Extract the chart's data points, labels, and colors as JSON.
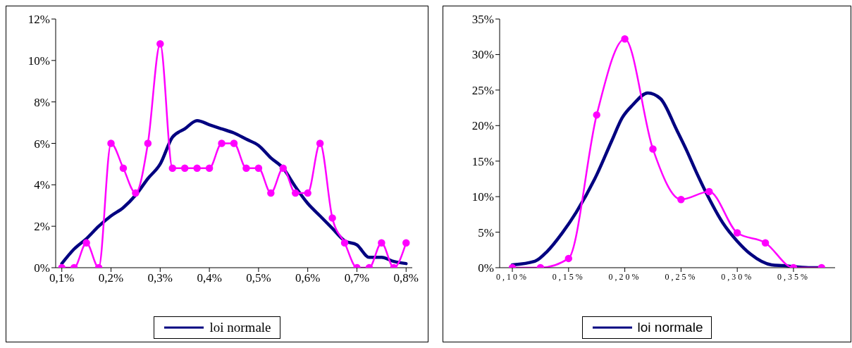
{
  "chart_data": [
    {
      "type": "line",
      "legend": "bottom",
      "xlim": [
        0.0875,
        0.8125
      ],
      "ylim": [
        0,
        12
      ],
      "xticks": [
        {
          "value": 0.1,
          "label": "0,1%"
        },
        {
          "value": 0.2,
          "label": "0,2%"
        },
        {
          "value": 0.3,
          "label": "0,3%"
        },
        {
          "value": 0.4,
          "label": "0,4%"
        },
        {
          "value": 0.5,
          "label": "0,5%"
        },
        {
          "value": 0.6,
          "label": "0,6%"
        },
        {
          "value": 0.7,
          "label": "0,7%"
        },
        {
          "value": 0.8,
          "label": "0,8%"
        }
      ],
      "yticks": [
        {
          "value": 0,
          "label": "0%"
        },
        {
          "value": 2,
          "label": "2%"
        },
        {
          "value": 4,
          "label": "4%"
        },
        {
          "value": 6,
          "label": "6%"
        },
        {
          "value": 8,
          "label": "8%"
        },
        {
          "value": 10,
          "label": "10%"
        },
        {
          "value": 12,
          "label": "12%"
        }
      ],
      "series": [
        {
          "name": "loi normale",
          "color": "#000080",
          "marker": "none",
          "x": [
            0.1,
            0.125,
            0.15,
            0.175,
            0.2,
            0.225,
            0.25,
            0.275,
            0.3,
            0.325,
            0.35,
            0.375,
            0.4,
            0.425,
            0.45,
            0.475,
            0.5,
            0.525,
            0.55,
            0.575,
            0.6,
            0.625,
            0.65,
            0.675,
            0.7,
            0.725,
            0.75,
            0.775,
            0.8
          ],
          "values": [
            0.2,
            0.9,
            1.4,
            2.0,
            2.5,
            2.9,
            3.5,
            4.3,
            5.0,
            6.3,
            6.7,
            7.1,
            6.9,
            6.7,
            6.5,
            6.2,
            5.9,
            5.3,
            4.8,
            3.9,
            3.1,
            2.5,
            1.9,
            1.3,
            1.1,
            0.5,
            0.5,
            0.3,
            0.2
          ]
        },
        {
          "color": "#ff00ff",
          "marker": "circle",
          "x": [
            0.1,
            0.125,
            0.15,
            0.175,
            0.2,
            0.225,
            0.25,
            0.275,
            0.3,
            0.325,
            0.35,
            0.375,
            0.4,
            0.425,
            0.45,
            0.475,
            0.5,
            0.525,
            0.55,
            0.575,
            0.6,
            0.625,
            0.65,
            0.675,
            0.7,
            0.725,
            0.75,
            0.775,
            0.8
          ],
          "values": [
            0,
            0,
            1.2,
            0,
            6,
            4.8,
            3.6,
            6,
            10.8,
            4.8,
            4.8,
            4.8,
            4.8,
            6,
            6,
            4.8,
            4.8,
            3.6,
            4.8,
            3.6,
            3.6,
            6,
            2.4,
            1.2,
            0,
            0,
            1.2,
            0,
            1.2
          ]
        }
      ]
    },
    {
      "type": "line",
      "legend": "bottom",
      "xlim": [
        0.0887,
        0.387
      ],
      "ylim": [
        0,
        35
      ],
      "xticks": [
        {
          "value": 0.1,
          "label": "0,10%"
        },
        {
          "value": 0.15,
          "label": "0,15%"
        },
        {
          "value": 0.2,
          "label": "0,20%"
        },
        {
          "value": 0.25,
          "label": "0,25%"
        },
        {
          "value": 0.3,
          "label": "0,30%"
        },
        {
          "value": 0.35,
          "label": "0,35%"
        }
      ],
      "yticks": [
        {
          "value": 0,
          "label": "0%"
        },
        {
          "value": 5,
          "label": "5%"
        },
        {
          "value": 10,
          "label": "10%"
        },
        {
          "value": 15,
          "label": "15%"
        },
        {
          "value": 20,
          "label": "20%"
        },
        {
          "value": 25,
          "label": "25%"
        },
        {
          "value": 30,
          "label": "30%"
        },
        {
          "value": 35,
          "label": "35%"
        }
      ],
      "series": [
        {
          "name": "loi normale",
          "color": "#000080",
          "marker": "none",
          "x": [
            0.1,
            0.12,
            0.131,
            0.1444,
            0.1568,
            0.1751,
            0.1885,
            0.1977,
            0.207,
            0.2204,
            0.2317,
            0.2461,
            0.2553,
            0.2626,
            0.2728,
            0.2872,
            0.2996,
            0.3119,
            0.3305,
            0.3407,
            0.3634,
            0.375
          ],
          "values": [
            0.4,
            0.9,
            2.3,
            4.9,
            7.8,
            13.1,
            17.9,
            21.1,
            22.9,
            24.6,
            23.8,
            19.4,
            16.4,
            13.8,
            10.4,
            6.3,
            3.8,
            1.9,
            0.4,
            0.3,
            0,
            0
          ]
        },
        {
          "color": "#ff00ff",
          "marker": "circle",
          "x": [
            0.1,
            0.125,
            0.15,
            0.175,
            0.2,
            0.225,
            0.25,
            0.275,
            0.3,
            0.325,
            0.35,
            0.375
          ],
          "values": [
            0,
            0,
            1.3,
            21.5,
            32.2,
            16.7,
            9.6,
            10.7,
            4.9,
            3.5,
            0,
            0
          ]
        }
      ]
    }
  ]
}
